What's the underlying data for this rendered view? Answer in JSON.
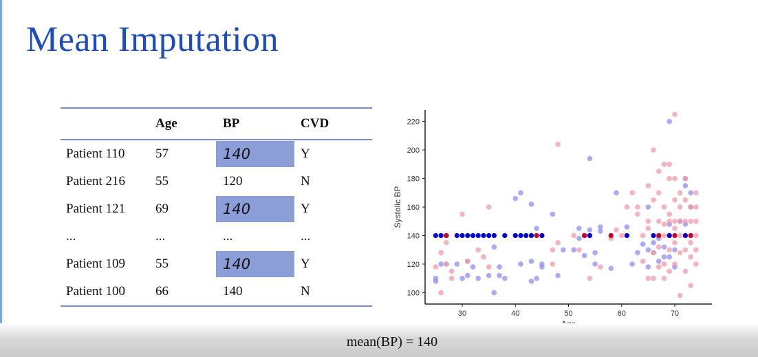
{
  "title": "Mean Imputation",
  "table": {
    "headers": [
      "",
      "Age",
      "BP",
      "CVD"
    ],
    "rows": [
      {
        "patient": "Patient 110",
        "age": "57",
        "bp": "140",
        "cvd": "Y",
        "imputed": true
      },
      {
        "patient": "Patient 216",
        "age": "55",
        "bp": "120",
        "cvd": "N",
        "imputed": false
      },
      {
        "patient": "Patient 121",
        "age": "69",
        "bp": "140",
        "cvd": "Y",
        "imputed": true
      },
      {
        "patient": "...",
        "age": "...",
        "bp": "...",
        "cvd": "...",
        "imputed": false
      },
      {
        "patient": "Patient 109",
        "age": "55",
        "bp": "140",
        "cvd": "Y",
        "imputed": true
      },
      {
        "patient": "Patient 100",
        "age": "66",
        "bp": "140",
        "cvd": "N",
        "imputed": false
      }
    ],
    "highlight_color": "#8c9ed8"
  },
  "formula": "mean(BP) = 140",
  "chart_data": {
    "type": "scatter",
    "xlabel": "Age",
    "ylabel": "Systolic BP",
    "xlim": [
      23,
      77
    ],
    "ylim": [
      92,
      228
    ],
    "xticks": [
      30,
      40,
      50,
      60,
      70
    ],
    "yticks": [
      100,
      120,
      140,
      160,
      180,
      200,
      220
    ],
    "grid": false,
    "colors": {
      "blue": "#8f8ff2",
      "red": "#f29aaa",
      "imputed_blue": "#0000cc",
      "imputed_red": "#cc0022"
    },
    "series": [
      {
        "color": "blue",
        "points": [
          [
            25,
            108
          ],
          [
            25,
            110
          ],
          [
            26,
            120
          ],
          [
            27,
            120
          ],
          [
            29,
            120
          ],
          [
            30,
            110
          ],
          [
            31,
            112
          ],
          [
            31,
            122
          ],
          [
            32,
            118
          ],
          [
            33,
            110
          ],
          [
            35,
            112
          ],
          [
            36,
            100
          ],
          [
            36,
            132
          ],
          [
            37,
            112
          ],
          [
            37,
            118
          ],
          [
            38,
            110
          ],
          [
            40,
            166
          ],
          [
            41,
            170
          ],
          [
            41,
            120
          ],
          [
            43,
            162
          ],
          [
            43,
            108
          ],
          [
            43,
            122
          ],
          [
            44,
            145
          ],
          [
            44,
            110
          ],
          [
            45,
            118
          ],
          [
            45,
            120
          ],
          [
            47,
            155
          ],
          [
            48,
            112
          ],
          [
            49,
            130
          ],
          [
            51,
            130
          ],
          [
            52,
            138
          ],
          [
            52,
            145
          ],
          [
            53,
            140
          ],
          [
            53,
            126
          ],
          [
            54,
            194
          ],
          [
            54,
            144
          ],
          [
            55,
            120
          ],
          [
            55,
            128
          ],
          [
            56,
            146
          ],
          [
            56,
            143
          ],
          [
            58,
            117
          ],
          [
            59,
            170
          ],
          [
            61,
            146
          ],
          [
            62,
            120
          ],
          [
            63,
            128
          ],
          [
            64,
            134
          ],
          [
            65,
            160
          ],
          [
            65,
            118
          ],
          [
            65,
            130
          ],
          [
            66,
            128
          ],
          [
            66,
            135
          ],
          [
            67,
            122
          ],
          [
            67,
            138
          ],
          [
            68,
            125
          ],
          [
            68,
            132
          ],
          [
            69,
            220
          ],
          [
            69,
            148
          ],
          [
            69,
            125
          ],
          [
            70,
            118
          ],
          [
            70,
            130
          ],
          [
            71,
            150
          ],
          [
            72,
            175
          ],
          [
            72,
            180
          ],
          [
            72,
            148
          ],
          [
            73,
            160
          ],
          [
            73,
            170
          ]
        ]
      },
      {
        "color": "red",
        "points": [
          [
            25,
            118
          ],
          [
            26,
            128
          ],
          [
            26,
            100
          ],
          [
            27,
            135
          ],
          [
            27,
            120
          ],
          [
            28,
            110
          ],
          [
            28,
            115
          ],
          [
            30,
            155
          ],
          [
            31,
            122
          ],
          [
            33,
            130
          ],
          [
            34,
            125
          ],
          [
            35,
            118
          ],
          [
            35,
            160
          ],
          [
            45,
            140
          ],
          [
            47,
            120
          ],
          [
            47,
            130
          ],
          [
            48,
            204
          ],
          [
            48,
            135
          ],
          [
            51,
            140
          ],
          [
            52,
            130
          ],
          [
            54,
            110
          ],
          [
            56,
            118
          ],
          [
            58,
            138
          ],
          [
            59,
            144
          ],
          [
            60,
            140
          ],
          [
            61,
            160
          ],
          [
            62,
            170
          ],
          [
            63,
            160
          ],
          [
            63,
            155
          ],
          [
            64,
            122
          ],
          [
            64,
            140
          ],
          [
            65,
            175
          ],
          [
            65,
            150
          ],
          [
            65,
            110
          ],
          [
            65,
            145
          ],
          [
            66,
            200
          ],
          [
            66,
            165
          ],
          [
            66,
            110
          ],
          [
            66,
            128
          ],
          [
            67,
            185
          ],
          [
            67,
            170
          ],
          [
            67,
            150
          ],
          [
            67,
            132
          ],
          [
            67,
            118
          ],
          [
            68,
            190
          ],
          [
            68,
            160
          ],
          [
            68,
            148
          ],
          [
            68,
            140
          ],
          [
            68,
            120
          ],
          [
            68,
            110
          ],
          [
            69,
            190
          ],
          [
            69,
            180
          ],
          [
            69,
            155
          ],
          [
            69,
            150
          ],
          [
            69,
            140
          ],
          [
            69,
            130
          ],
          [
            69,
            115
          ],
          [
            70,
            225
          ],
          [
            70,
            180
          ],
          [
            70,
            165
          ],
          [
            70,
            150
          ],
          [
            70,
            145
          ],
          [
            70,
            135
          ],
          [
            70,
            120
          ],
          [
            71,
            170
          ],
          [
            71,
            160
          ],
          [
            71,
            150
          ],
          [
            71,
            140
          ],
          [
            71,
            128
          ],
          [
            71,
            98
          ],
          [
            72,
            180
          ],
          [
            72,
            165
          ],
          [
            72,
            150
          ],
          [
            72,
            140
          ],
          [
            72,
            130
          ],
          [
            72,
            115
          ],
          [
            73,
            160
          ],
          [
            73,
            150
          ],
          [
            73,
            135
          ],
          [
            73,
            125
          ],
          [
            73,
            105
          ],
          [
            74,
            170
          ],
          [
            74,
            160
          ],
          [
            74,
            150
          ],
          [
            74,
            140
          ],
          [
            74,
            130
          ],
          [
            74,
            120
          ]
        ]
      },
      {
        "color": "imputed_blue",
        "points": [
          [
            25,
            140
          ],
          [
            26,
            140
          ],
          [
            27,
            140
          ],
          [
            29,
            140
          ],
          [
            30,
            140
          ],
          [
            31,
            140
          ],
          [
            32,
            140
          ],
          [
            33,
            140
          ],
          [
            34,
            140
          ],
          [
            35,
            140
          ],
          [
            36,
            140
          ],
          [
            38,
            140
          ],
          [
            40,
            140
          ],
          [
            41,
            140
          ],
          [
            42,
            140
          ],
          [
            43,
            140
          ],
          [
            45,
            140
          ],
          [
            54,
            140
          ],
          [
            61,
            140
          ],
          [
            66,
            140
          ],
          [
            69,
            140
          ],
          [
            72,
            140
          ]
        ]
      },
      {
        "color": "imputed_red",
        "points": [
          [
            27,
            140
          ],
          [
            44,
            140
          ],
          [
            53,
            140
          ],
          [
            58,
            140
          ],
          [
            67,
            140
          ],
          [
            70,
            140
          ],
          [
            73,
            140
          ]
        ]
      }
    ]
  }
}
